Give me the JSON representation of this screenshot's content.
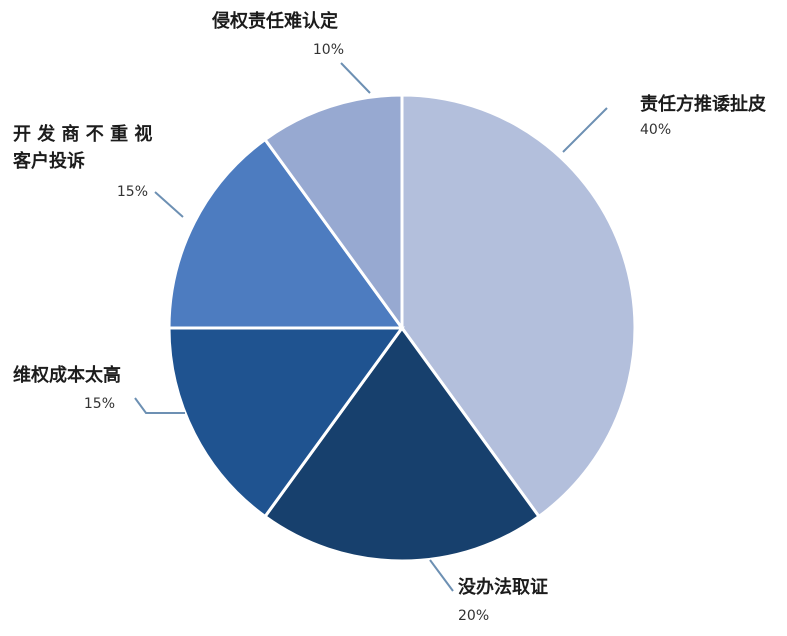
{
  "chart_data": {
    "type": "pie",
    "title": "",
    "slices": [
      {
        "name": "责任方推诿扯皮",
        "lines": [
          "责任方推诿扯皮"
        ],
        "value": 40,
        "label": "40%",
        "color": "#b3bfdc"
      },
      {
        "name": "没办法取证",
        "lines": [
          "没办法取证"
        ],
        "value": 20,
        "label": "20%",
        "color": "#17406d"
      },
      {
        "name": "维权成本太高",
        "lines": [
          "维权成本太高"
        ],
        "value": 15,
        "label": "15%",
        "color": "#1f5390"
      },
      {
        "name": "开发商不重视客户投诉",
        "lines": [
          "开 发 商 不 重 视",
          "客户投诉"
        ],
        "value": 15,
        "label": "15%",
        "color": "#4d7cc0"
      },
      {
        "name": "侵权责任难认定",
        "lines": [
          "侵权责任难认定"
        ],
        "value": 10,
        "label": "10%",
        "color": "#97a9d1"
      }
    ],
    "start_angle_deg": 0,
    "direction": "clockwise",
    "legend": "none"
  }
}
